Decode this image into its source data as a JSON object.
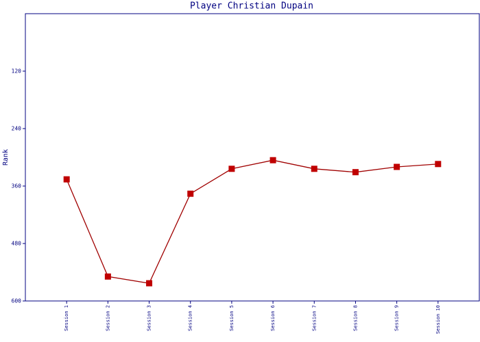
{
  "chart_data": {
    "type": "line",
    "title": "Player Christian Dupain",
    "y_label": "Rank",
    "categories": [
      "Session 1",
      "Session 2",
      "Session 3",
      "Session 4",
      "Session 5",
      "Session 6",
      "Session 7",
      "Session 8",
      "Session 9",
      "Session 10"
    ],
    "series": [
      {
        "name": "Rank",
        "color": "#a00000",
        "marker_color": "#c00000",
        "values": [
          346,
          549,
          563,
          376,
          324,
          306,
          324,
          331,
          320,
          314
        ]
      }
    ],
    "ylim": [
      0,
      600
    ],
    "y_inverted": true,
    "yticks": [
      120,
      240,
      360,
      480,
      600
    ],
    "grid": false,
    "axis_color": "#000080"
  }
}
